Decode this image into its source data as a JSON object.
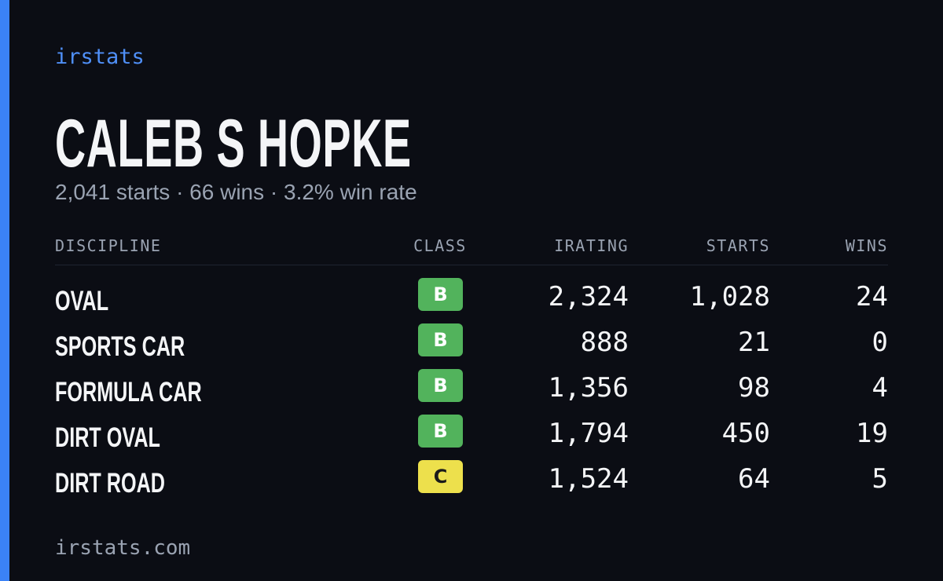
{
  "brand": "irstats",
  "driver": {
    "name": "CALEB S HOPKE",
    "summary": "2,041 starts · 66 wins · 3.2% win rate"
  },
  "table": {
    "headers": [
      "DISCIPLINE",
      "CLASS",
      "IRATING",
      "STARTS",
      "WINS"
    ],
    "rows": [
      {
        "discipline": "OVAL",
        "class": "B",
        "color": "#52b35c",
        "irating": "2,324",
        "starts": "1,028",
        "wins": "24"
      },
      {
        "discipline": "SPORTS CAR",
        "class": "B",
        "color": "#52b35c",
        "irating": "888",
        "starts": "21",
        "wins": "0"
      },
      {
        "discipline": "FORMULA CAR",
        "class": "B",
        "color": "#52b35c",
        "irating": "1,356",
        "starts": "98",
        "wins": "4"
      },
      {
        "discipline": "DIRT OVAL",
        "class": "B",
        "color": "#52b35c",
        "irating": "1,794",
        "starts": "450",
        "wins": "19"
      },
      {
        "discipline": "DIRT ROAD",
        "class": "C",
        "color": "#ede04c",
        "irating": "1,524",
        "starts": "64",
        "wins": "5"
      }
    ]
  },
  "footer": "irstats.com"
}
